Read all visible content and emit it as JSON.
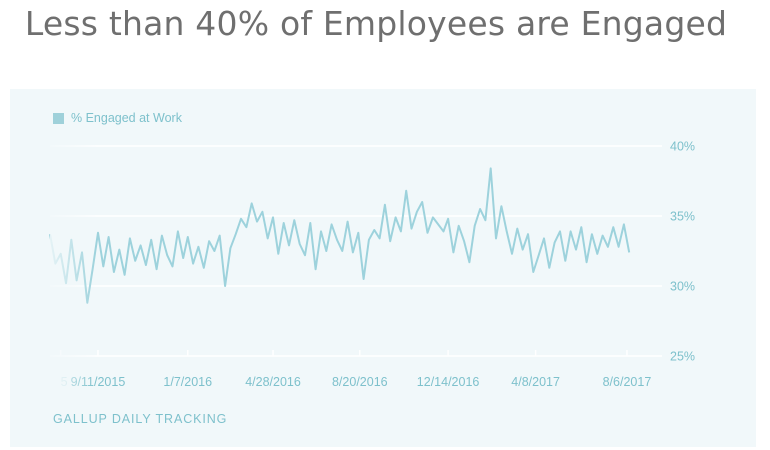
{
  "slide": {
    "title": "Less than 40% of Employees are Engaged"
  },
  "source_label": "GALLUP DAILY TRACKING",
  "colors": {
    "line": "#9dd2dc",
    "axis_text": "#7ec1cc",
    "panel_bg": "#f1f8fa",
    "grid": "#ffffff"
  },
  "chart_data": {
    "type": "line",
    "title": "Less than 40% of Employees are Engaged",
    "xlabel": "",
    "ylabel": "",
    "legend": {
      "position": "top-left",
      "entries": [
        "% Engaged at Work"
      ]
    },
    "y_axis": {
      "position": "right",
      "ticks": [
        25,
        30,
        35,
        40
      ],
      "tick_labels": [
        "25%",
        "30%",
        "35%",
        "40%"
      ],
      "ylim": [
        25,
        40
      ]
    },
    "x_axis": {
      "type": "date",
      "range": [
        "2015-07-10",
        "2017-08-10"
      ],
      "ticks": [
        "2015-07-24",
        "2015-09-11",
        "2016-01-07",
        "2016-04-28",
        "2016-08-20",
        "2016-12-14",
        "2017-04-08",
        "2017-08-06"
      ],
      "tick_labels": [
        "5",
        "9/11/2015",
        "1/7/2016",
        "4/28/2016",
        "8/20/2016",
        "12/14/2016",
        "4/8/2017",
        "8/6/2017"
      ]
    },
    "grid": true,
    "series": [
      {
        "name": "% Engaged at Work",
        "points": [
          [
            "2015-07-10",
            33.7
          ],
          [
            "2015-07-17",
            31.6
          ],
          [
            "2015-07-24",
            32.3
          ],
          [
            "2015-07-31",
            30.2
          ],
          [
            "2015-08-07",
            33.3
          ],
          [
            "2015-08-14",
            30.4
          ],
          [
            "2015-08-21",
            32.4
          ],
          [
            "2015-08-28",
            28.8
          ],
          [
            "2015-09-04",
            31.2
          ],
          [
            "2015-09-11",
            33.8
          ],
          [
            "2015-09-18",
            31.4
          ],
          [
            "2015-09-25",
            33.5
          ],
          [
            "2015-10-02",
            31.0
          ],
          [
            "2015-10-09",
            32.6
          ],
          [
            "2015-10-16",
            30.8
          ],
          [
            "2015-10-23",
            33.4
          ],
          [
            "2015-10-30",
            31.8
          ],
          [
            "2015-11-06",
            32.9
          ],
          [
            "2015-11-13",
            31.5
          ],
          [
            "2015-11-20",
            33.3
          ],
          [
            "2015-11-27",
            31.2
          ],
          [
            "2015-12-04",
            33.6
          ],
          [
            "2015-12-11",
            32.2
          ],
          [
            "2015-12-18",
            31.4
          ],
          [
            "2015-12-25",
            33.9
          ],
          [
            "2016-01-01",
            32.0
          ],
          [
            "2016-01-07",
            33.5
          ],
          [
            "2016-01-14",
            31.6
          ],
          [
            "2016-01-21",
            32.8
          ],
          [
            "2016-01-28",
            31.3
          ],
          [
            "2016-02-04",
            33.2
          ],
          [
            "2016-02-11",
            32.5
          ],
          [
            "2016-02-18",
            33.6
          ],
          [
            "2016-02-25",
            30.0
          ],
          [
            "2016-03-03",
            32.7
          ],
          [
            "2016-03-10",
            33.7
          ],
          [
            "2016-03-17",
            34.8
          ],
          [
            "2016-03-24",
            34.2
          ],
          [
            "2016-03-31",
            35.9
          ],
          [
            "2016-04-07",
            34.6
          ],
          [
            "2016-04-14",
            35.3
          ],
          [
            "2016-04-21",
            33.4
          ],
          [
            "2016-04-28",
            34.9
          ],
          [
            "2016-05-05",
            32.3
          ],
          [
            "2016-05-12",
            34.5
          ],
          [
            "2016-05-19",
            32.9
          ],
          [
            "2016-05-26",
            34.7
          ],
          [
            "2016-06-02",
            33.0
          ],
          [
            "2016-06-09",
            32.2
          ],
          [
            "2016-06-16",
            34.5
          ],
          [
            "2016-06-23",
            31.2
          ],
          [
            "2016-06-30",
            33.9
          ],
          [
            "2016-07-07",
            32.5
          ],
          [
            "2016-07-14",
            34.4
          ],
          [
            "2016-07-21",
            33.3
          ],
          [
            "2016-07-28",
            32.5
          ],
          [
            "2016-08-04",
            34.6
          ],
          [
            "2016-08-11",
            32.4
          ],
          [
            "2016-08-18",
            33.8
          ],
          [
            "2016-08-25",
            30.5
          ],
          [
            "2016-09-01",
            33.3
          ],
          [
            "2016-09-08",
            34.0
          ],
          [
            "2016-09-15",
            33.4
          ],
          [
            "2016-09-22",
            35.8
          ],
          [
            "2016-09-29",
            33.2
          ],
          [
            "2016-10-06",
            34.9
          ],
          [
            "2016-10-13",
            33.9
          ],
          [
            "2016-10-20",
            36.8
          ],
          [
            "2016-10-27",
            34.1
          ],
          [
            "2016-11-03",
            35.3
          ],
          [
            "2016-11-10",
            36.0
          ],
          [
            "2016-11-17",
            33.8
          ],
          [
            "2016-11-24",
            34.9
          ],
          [
            "2016-12-01",
            34.4
          ],
          [
            "2016-12-08",
            33.9
          ],
          [
            "2016-12-14",
            34.8
          ],
          [
            "2016-12-21",
            32.4
          ],
          [
            "2016-12-28",
            34.3
          ],
          [
            "2017-01-04",
            33.2
          ],
          [
            "2017-01-11",
            31.7
          ],
          [
            "2017-01-18",
            34.3
          ],
          [
            "2017-01-25",
            35.5
          ],
          [
            "2017-02-01",
            34.7
          ],
          [
            "2017-02-08",
            38.4
          ],
          [
            "2017-02-15",
            33.4
          ],
          [
            "2017-02-22",
            35.7
          ],
          [
            "2017-03-01",
            33.9
          ],
          [
            "2017-03-08",
            32.3
          ],
          [
            "2017-03-15",
            34.1
          ],
          [
            "2017-03-22",
            32.6
          ],
          [
            "2017-03-29",
            33.7
          ],
          [
            "2017-04-05",
            31.0
          ],
          [
            "2017-04-12",
            32.2
          ],
          [
            "2017-04-19",
            33.4
          ],
          [
            "2017-04-26",
            31.3
          ],
          [
            "2017-05-03",
            33.1
          ],
          [
            "2017-05-10",
            33.9
          ],
          [
            "2017-05-17",
            31.8
          ],
          [
            "2017-05-24",
            33.9
          ],
          [
            "2017-05-31",
            32.6
          ],
          [
            "2017-06-07",
            34.2
          ],
          [
            "2017-06-14",
            31.7
          ],
          [
            "2017-06-21",
            33.7
          ],
          [
            "2017-06-28",
            32.3
          ],
          [
            "2017-07-05",
            33.6
          ],
          [
            "2017-07-12",
            32.8
          ],
          [
            "2017-07-19",
            34.2
          ],
          [
            "2017-07-26",
            32.8
          ],
          [
            "2017-08-02",
            34.4
          ],
          [
            "2017-08-09",
            32.4
          ]
        ]
      }
    ]
  }
}
